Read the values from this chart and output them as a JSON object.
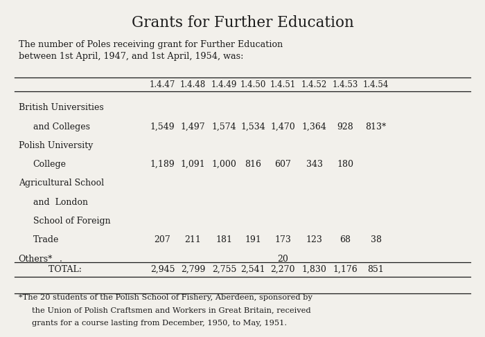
{
  "title": "Grants for Further Education",
  "subtitle_line1": "The number of Poles receiving grant for Further Education",
  "subtitle_line2": "between 1st April, 1947, and 1st April, 1954, was:",
  "columns": [
    "1.4.47",
    "1.4.48",
    "1.4.49",
    "1.4.50",
    "1.4.51",
    "1.4.52",
    "1.4.53",
    "1.4.54"
  ],
  "row1_label": [
    "British Universities",
    "and Colleges"
  ],
  "row1_values": [
    "1,549",
    "1,497",
    "1,574",
    "1,534",
    "1,470",
    "1,364",
    "928",
    "813*"
  ],
  "row2_label": [
    "Polish University",
    "College"
  ],
  "row2_values": [
    "1,189",
    "1,091",
    "1,000",
    "816",
    "607",
    "343",
    "180",
    ""
  ],
  "row3_label": [
    "Agricultural School",
    "and  London",
    "School of Foreign",
    "Trade"
  ],
  "row3_values": [
    "207",
    "211",
    "181",
    "191",
    "173",
    "123",
    "68",
    "38"
  ],
  "row4_label": "Others*",
  "row4_dot_col": 1,
  "row4_values": [
    "",
    "",
    "",
    "",
    "20",
    "",
    "",
    ""
  ],
  "total_label": "Total:",
  "total_values": [
    "2,945",
    "2,799",
    "2,755",
    "2,541",
    "2,270",
    "1,830",
    "1,176",
    "851"
  ],
  "footnote_line1": "*The 20 students of the Polish School of Fishery, Aberdeen, sponsored by",
  "footnote_line2": "the Union of Polish Craftsmen and Workers in Great Britain, received",
  "footnote_line3": "grants for a course lasting from December, 1950, to May, 1951.",
  "bg_color": "#f2f0eb",
  "text_color": "#1a1a1a"
}
